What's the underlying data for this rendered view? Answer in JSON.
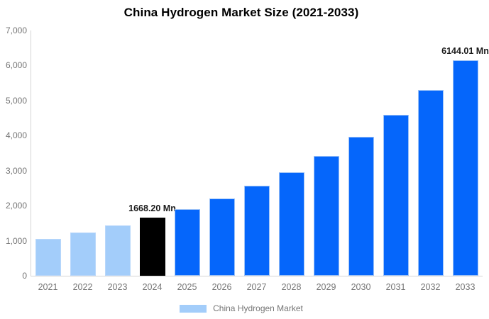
{
  "chart_data": {
    "type": "bar",
    "title": "China Hydrogen Market Size (2021-2033)",
    "categories": [
      "2021",
      "2022",
      "2023",
      "2024",
      "2025",
      "2026",
      "2027",
      "2028",
      "2029",
      "2030",
      "2031",
      "2032",
      "2033"
    ],
    "values": [
      1060,
      1225,
      1430,
      1668.2,
      1910,
      2210,
      2560,
      2960,
      3420,
      3960,
      4590,
      5300,
      6144.01
    ],
    "bar_styles": [
      "historical",
      "historical",
      "historical",
      "base",
      "forecast",
      "forecast",
      "forecast",
      "forecast",
      "forecast",
      "forecast",
      "forecast",
      "forecast",
      "forecast"
    ],
    "data_labels": [
      "",
      "",
      "",
      "1668.20 Mn",
      "",
      "",
      "",
      "",
      "",
      "",
      "",
      "",
      "6144.01 Mn"
    ],
    "colors": {
      "historical": "#a3cdfa",
      "base": "#000000",
      "forecast": "#0566fb"
    },
    "xlabel": "",
    "ylabel": "",
    "ylim": [
      0,
      7000
    ],
    "yticks": [
      "0",
      "1,000",
      "2,000",
      "3,000",
      "4,000",
      "5,000",
      "6,000",
      "7,000"
    ],
    "grid": false,
    "legend_position": "bottom",
    "legend": [
      {
        "label": "China Hydrogen Market",
        "color": "#a3cdfa"
      }
    ]
  }
}
